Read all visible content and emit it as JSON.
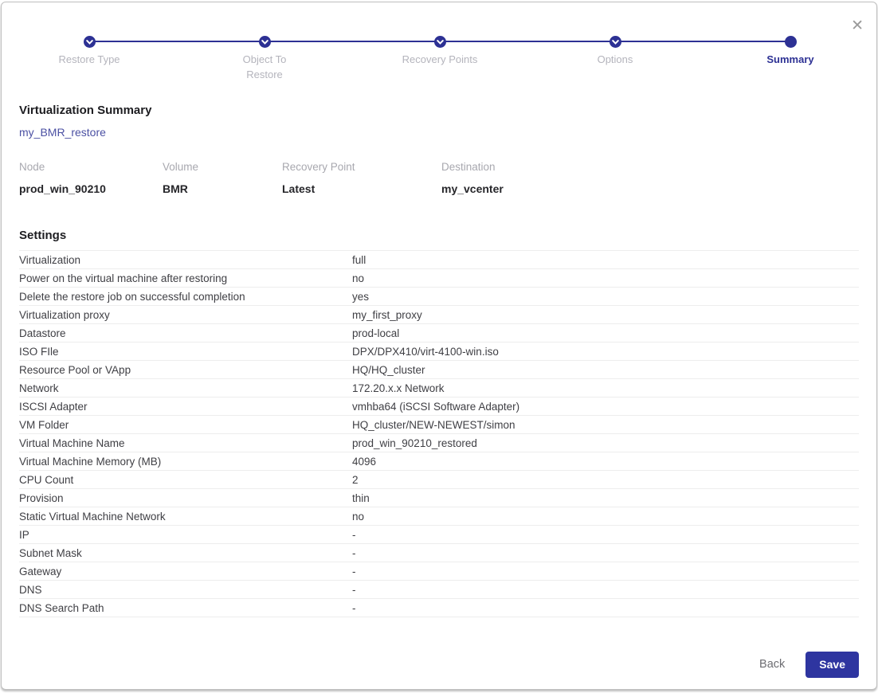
{
  "dialog": {
    "close_icon": "✕",
    "steps": [
      {
        "label": "Restore Type",
        "lines": [
          "Restore Type"
        ],
        "state": "completed"
      },
      {
        "label": "Object To Restore",
        "lines": [
          "Object To",
          "Restore"
        ],
        "state": "completed"
      },
      {
        "label": "Recovery Points",
        "lines": [
          "Recovery Points"
        ],
        "state": "completed"
      },
      {
        "label": "Options",
        "lines": [
          "Options"
        ],
        "state": "completed"
      },
      {
        "label": "Summary",
        "lines": [
          "Summary"
        ],
        "state": "active"
      }
    ],
    "title": "Virtualization Summary",
    "job_name": "my_BMR_restore",
    "overview": [
      {
        "label": "Node",
        "value": "prod_win_90210"
      },
      {
        "label": "Volume",
        "value": "BMR"
      },
      {
        "label": "Recovery Point",
        "value": "Latest"
      },
      {
        "label": "Destination",
        "value": "my_vcenter"
      }
    ],
    "settings": {
      "title": "Settings",
      "rows": [
        {
          "label": "Virtualization",
          "value": "full"
        },
        {
          "label": "Power on the virtual machine after restoring",
          "value": "no"
        },
        {
          "label": "Delete the restore job on successful completion",
          "value": "yes"
        },
        {
          "label": "Virtualization proxy",
          "value": "my_first_proxy"
        },
        {
          "label": "Datastore",
          "value": "prod-local"
        },
        {
          "label": "ISO FIle",
          "value": "DPX/DPX410/virt-4100-win.iso"
        },
        {
          "label": "Resource Pool or VApp",
          "value": "HQ/HQ_cluster"
        },
        {
          "label": "Network",
          "value": "172.20.x.x Network"
        },
        {
          "label": "ISCSI Adapter",
          "value": "vmhba64 (iSCSI Software Adapter)"
        },
        {
          "label": "VM Folder",
          "value": "HQ_cluster/NEW-NEWEST/simon"
        },
        {
          "label": "Virtual Machine Name",
          "value": "prod_win_90210_restored"
        },
        {
          "label": "Virtual Machine Memory (MB)",
          "value": "4096"
        },
        {
          "label": "CPU Count",
          "value": "2"
        },
        {
          "label": "Provision",
          "value": "thin"
        },
        {
          "label": "Static Virtual Machine Network",
          "value": "no"
        },
        {
          "label": "IP",
          "value": "-"
        },
        {
          "label": "Subnet Mask",
          "value": "-"
        },
        {
          "label": "Gateway",
          "value": "-"
        },
        {
          "label": "DNS",
          "value": "-"
        },
        {
          "label": "DNS Search Path",
          "value": "-"
        }
      ]
    },
    "footer": {
      "back_label": "Back",
      "save_label": "Save"
    },
    "colors": {
      "accent": "#2d3194",
      "link": "#4b50a3",
      "muted": "#a8a8af",
      "step_muted": "#b4b4bc",
      "heading": "#1d1d21",
      "line": "#ededed",
      "save_bg": "#2e35a0"
    }
  }
}
